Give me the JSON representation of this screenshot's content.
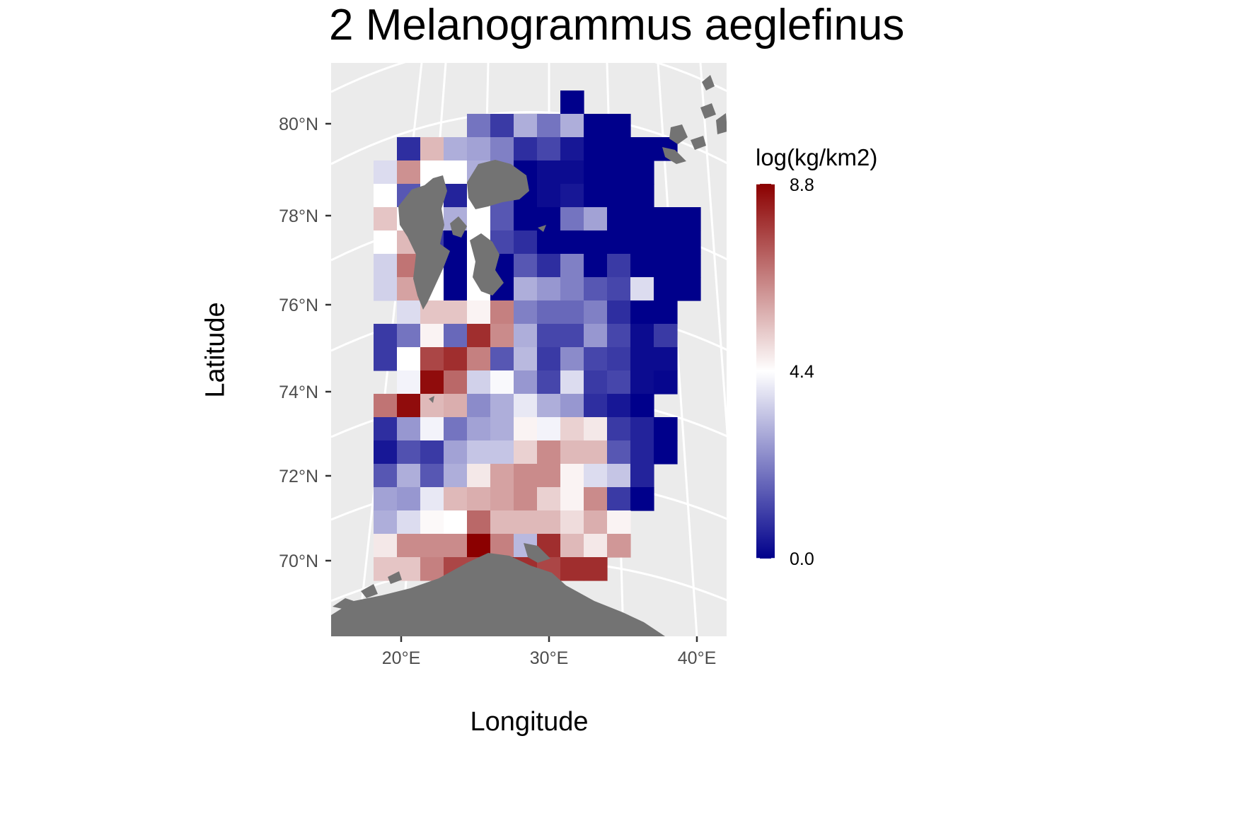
{
  "title": "2 Melanogrammus aeglefinus",
  "x_axis_label": "Longitude",
  "y_axis_label": "Latitude",
  "lat_ticks": [
    "80°N",
    "78°N",
    "76°N",
    "74°N",
    "72°N",
    "70°N"
  ],
  "lon_ticks": [
    "20°E",
    "30°E",
    "40°E"
  ],
  "legend": {
    "title": "log(kg/km2)",
    "labels": [
      "8.8",
      "4.4",
      "0.0"
    ],
    "min": 0.0,
    "mid": 4.4,
    "max": 8.8,
    "colors": {
      "low": "#00008B",
      "mid": "#FFFFFF",
      "high": "#8B0000"
    }
  },
  "colors": {
    "panel_background": "#EBEBEB",
    "gridline": "#FFFFFF",
    "land": "#737373"
  },
  "chart_data": {
    "type": "heatmap",
    "title": "2 Melanogrammus aeglefinus",
    "xlabel": "Longitude",
    "ylabel": "Latitude",
    "value_label": "log(kg/km2)",
    "value_range": [
      0.0,
      8.8
    ],
    "grid_rows": [
      {
        "lat": "80.5°N",
        "start_col": 8,
        "values": [
          0.0
        ]
      },
      {
        "lat": "80.0°N",
        "start_col": 4,
        "values": [
          2.0,
          1.0,
          3.0,
          2.0,
          3.0,
          0.0,
          0.0
        ]
      },
      {
        "lat": "79.5°N",
        "start_col": 1,
        "values": [
          0.8,
          5.6,
          3.0,
          2.8,
          2.2,
          0.8,
          1.2,
          0.4,
          0.0,
          0.0,
          0.0,
          0.0
        ]
      },
      {
        "lat": "79.0°N",
        "start_col": 0,
        "values": [
          3.8,
          6.3,
          4.4,
          4.4,
          3.0,
          2.2,
          0.0,
          0.2,
          0.2,
          0.0,
          0.0,
          0.0
        ]
      },
      {
        "lat": "78.5°N",
        "start_col": 0,
        "values": [
          4.4,
          1.5,
          4.4,
          0.6,
          4.4,
          1.5,
          0.0,
          0.2,
          0.4,
          0.0,
          0.0,
          0.0
        ]
      },
      {
        "lat": "78.0°N",
        "start_col": 0,
        "values": [
          5.4,
          4.4,
          4.4,
          3.0,
          4.4,
          1.5,
          0.0,
          0.0,
          2.0,
          2.8,
          0.0,
          0.0,
          0.0,
          0.0
        ]
      },
      {
        "lat": "77.5°N",
        "start_col": 0,
        "values": [
          4.4,
          5.6,
          1.0,
          0.0,
          4.4,
          1.2,
          0.8,
          0.0,
          0.0,
          0.0,
          0.0,
          0.0,
          0.0,
          0.0
        ]
      },
      {
        "lat": "77.0°N",
        "start_col": 0,
        "values": [
          3.6,
          6.8,
          4.4,
          0.0,
          4.4,
          0.0,
          1.5,
          0.8,
          2.2,
          0.0,
          1.0,
          0.0,
          0.0,
          0.0
        ]
      },
      {
        "lat": "76.5°N",
        "start_col": 0,
        "values": [
          3.6,
          6.0,
          4.4,
          0.0,
          4.4,
          0.0,
          3.0,
          2.6,
          2.2,
          1.5,
          1.2,
          3.8,
          0.0,
          0.0
        ]
      },
      {
        "lat": "76.0°N",
        "start_col": 1,
        "values": [
          3.8,
          5.4,
          5.4,
          4.6,
          6.6,
          2.2,
          1.8,
          1.8,
          2.2,
          0.8,
          0.0,
          0.0
        ]
      },
      {
        "lat": "75.5°N",
        "start_col": 0,
        "values": [
          1.0,
          2.0,
          4.6,
          1.8,
          8.0,
          6.4,
          3.0,
          1.2,
          1.2,
          2.6,
          1.2,
          0.2,
          1.0
        ]
      },
      {
        "lat": "75.0°N",
        "start_col": 0,
        "values": [
          1.0,
          4.4,
          7.6,
          8.0,
          6.6,
          1.5,
          3.2,
          1.0,
          2.4,
          1.2,
          1.0,
          0.2,
          0.2
        ]
      },
      {
        "lat": "74.5°N",
        "start_col": 1,
        "values": [
          4.2,
          8.6,
          7.0,
          3.6,
          4.3,
          2.6,
          1.2,
          3.8,
          1.0,
          1.2,
          0.2,
          0.1
        ]
      },
      {
        "lat": "74.0°N",
        "start_col": 0,
        "values": [
          6.8,
          8.6,
          5.6,
          5.8,
          2.4,
          3.0,
          4.0,
          3.0,
          2.6,
          0.8,
          0.4,
          0.0
        ]
      },
      {
        "lat": "73.5°N",
        "start_col": 0,
        "values": [
          0.8,
          2.6,
          4.2,
          2.0,
          2.8,
          3.0,
          4.6,
          4.2,
          5.2,
          4.8,
          1.0,
          0.6,
          0.0
        ]
      },
      {
        "lat": "73.0°N",
        "start_col": 0,
        "values": [
          0.4,
          1.4,
          1.0,
          2.8,
          3.4,
          3.4,
          5.2,
          6.4,
          5.6,
          5.6,
          1.5,
          0.6,
          0.0
        ]
      },
      {
        "lat": "72.5°N",
        "start_col": 0,
        "values": [
          1.5,
          3.0,
          1.5,
          3.0,
          4.8,
          6.0,
          6.4,
          6.4,
          4.6,
          3.8,
          3.4,
          0.6
        ]
      },
      {
        "lat": "72.0°N",
        "start_col": 0,
        "values": [
          2.8,
          2.6,
          4.0,
          5.6,
          5.8,
          6.0,
          6.4,
          5.2,
          4.6,
          6.4,
          1.0,
          0.0
        ]
      },
      {
        "lat": "71.5°N",
        "start_col": 0,
        "values": [
          3.0,
          3.8,
          4.5,
          4.4,
          7.0,
          5.6,
          5.6,
          5.6,
          5.0,
          5.8,
          4.6
        ]
      },
      {
        "lat": "71.0°N",
        "start_col": 0,
        "values": [
          4.8,
          6.4,
          6.4,
          6.4,
          8.8,
          6.6,
          3.2,
          8.0,
          5.6,
          4.8,
          6.2
        ]
      },
      {
        "lat": "70.5°N",
        "start_col": 0,
        "values": [
          5.4,
          5.4,
          6.6,
          7.6,
          7.6,
          8.6,
          8.0,
          7.6,
          8.0,
          8.0
        ]
      }
    ]
  }
}
